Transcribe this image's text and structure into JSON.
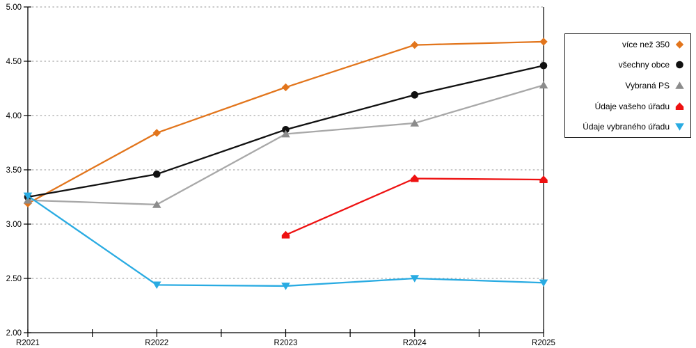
{
  "chart_data": {
    "type": "line",
    "title": "",
    "xlabel": "",
    "ylabel": "",
    "categories": [
      "R2021",
      "R2022",
      "R2023",
      "R2024",
      "R2025"
    ],
    "series": [
      {
        "name": "více než 350",
        "marker": "diamond",
        "color": "#E2751C",
        "values": [
          3.19,
          3.84,
          4.26,
          4.65,
          4.68
        ]
      },
      {
        "name": "všechny obce",
        "marker": "circle",
        "color": "#111111",
        "values": [
          3.25,
          3.46,
          3.87,
          4.19,
          4.46
        ]
      },
      {
        "name": "Vybraná PS",
        "marker": "triangle-up",
        "color": "#8C8C8C",
        "line_color": "#A8A8A8",
        "values": [
          3.22,
          3.18,
          3.83,
          3.93,
          4.28
        ]
      },
      {
        "name": "Údaje vašeho úřadu",
        "marker": "house",
        "color": "#EE1111",
        "values": [
          null,
          null,
          2.9,
          3.42,
          3.41
        ]
      },
      {
        "name": "Údaje vybraného úřadu",
        "marker": "triangle-down",
        "color": "#29ABE2",
        "values": [
          3.26,
          2.44,
          2.43,
          2.5,
          2.46
        ]
      }
    ],
    "ylim": [
      2.0,
      5.0
    ],
    "yticks": [
      "2.00",
      "2.50",
      "3.00",
      "3.50",
      "4.00",
      "4.50",
      "5.00"
    ],
    "grid": "horizontal-dotted",
    "minor_x_ticks_between_categories": true,
    "legend_position": "outside-right",
    "style": {
      "axis_color": "#000000",
      "grid_color": "#ABABAB",
      "tick_label_color": "#000000",
      "background": "#FFFFFF"
    }
  }
}
